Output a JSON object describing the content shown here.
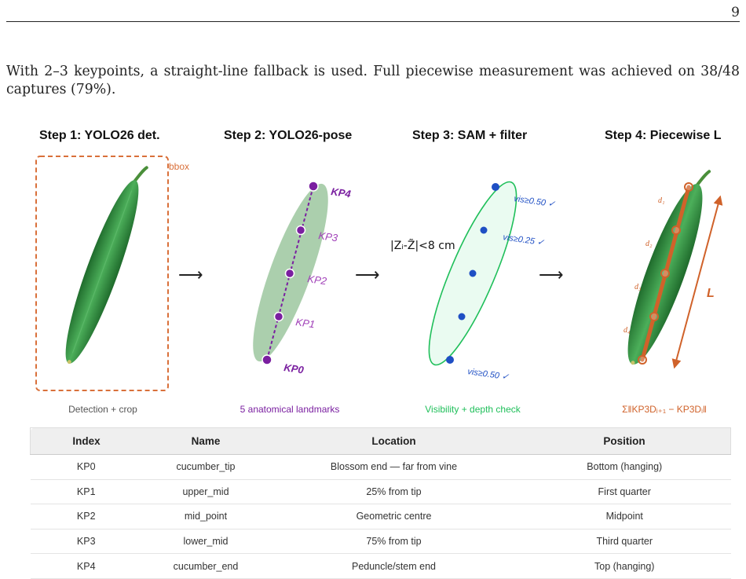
{
  "page": {
    "number": "9",
    "paragraph": "With 2–3 keypoints, a straight-line fallback is used. Full piecewise measurement was achieved on 38/48 captures (79%)."
  },
  "figure": {
    "steps": [
      {
        "title": "Step 1: YOLO26 det.",
        "caption": "Detection + crop",
        "caption_color": "#555555"
      },
      {
        "title": "Step 2: YOLO26-pose",
        "caption": "5 anatomical landmarks",
        "caption_color": "#7a1fa0"
      },
      {
        "title": "Step 3: SAM + filter",
        "caption": "Visibility + depth check",
        "caption_color": "#1fbf5a"
      },
      {
        "title": "Step 4: Piecewise L",
        "caption": "Σ‖KP3Dᵢ₊₁ − KP3Dᵢ‖",
        "caption_color": "#d0622a"
      }
    ],
    "arrow": "⟶",
    "bbox_label": "bbox",
    "keypoint_labels": [
      "KP0",
      "KP1",
      "KP2",
      "KP3",
      "KP4"
    ],
    "vis_labels": [
      "vis≥0.50 ✓",
      "vis≥0.25 ✓",
      "vis≥0.50 ✓"
    ],
    "depth_formula": "|Zᵢ-Z̃|<8 cm",
    "segment_labels": [
      "d₁",
      "d₂",
      "d₃",
      "d₄"
    ],
    "length_label": "L",
    "colors": {
      "bbox": "#d9703a",
      "pose": "#7a1fa0",
      "sam": "#1fbf5a",
      "sam_points": "#1f4fc4",
      "piecewise": "#d0622a"
    }
  },
  "table": {
    "headers": [
      "Index",
      "Name",
      "Location",
      "Position"
    ],
    "rows": [
      [
        "KP0",
        "cucumber_tip",
        "Blossom end — far from vine",
        "Bottom (hanging)"
      ],
      [
        "KP1",
        "upper_mid",
        "25% from tip",
        "First quarter"
      ],
      [
        "KP2",
        "mid_point",
        "Geometric centre",
        "Midpoint"
      ],
      [
        "KP3",
        "lower_mid",
        "75% from tip",
        "Third quarter"
      ],
      [
        "KP4",
        "cucumber_end",
        "Peduncle/stem end",
        "Top (hanging)"
      ]
    ]
  }
}
